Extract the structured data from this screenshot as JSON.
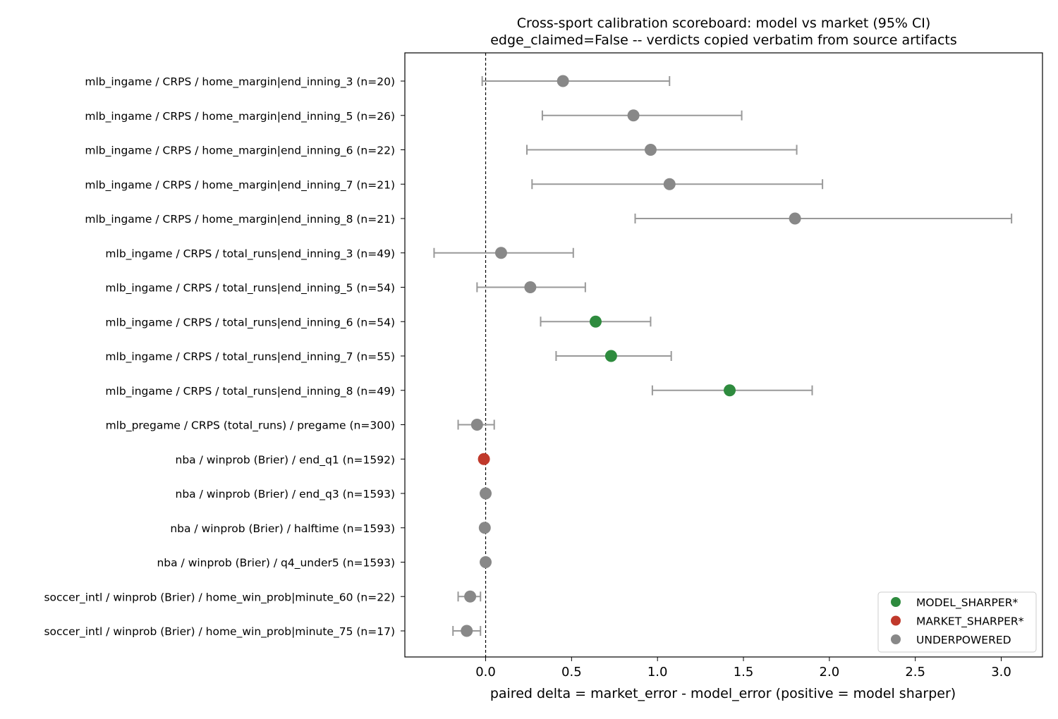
{
  "chart_data": {
    "type": "scatter",
    "title": "Cross-sport calibration scoreboard: model vs market (95% CI)",
    "subtitle": "edge_claimed=False -- verdicts copied verbatim from source artifacts",
    "xlabel": "paired delta = market_error - model_error  (positive = model sharper)",
    "ylabel": "",
    "xlim": [
      -0.47,
      3.24
    ],
    "xticks": [
      0.0,
      0.5,
      1.0,
      1.5,
      2.0,
      2.5,
      3.0
    ],
    "xtick_labels": [
      "0.0",
      "0.5",
      "1.0",
      "1.5",
      "2.0",
      "2.5",
      "3.0"
    ],
    "reference_line": {
      "x": 0,
      "style": "dashed"
    },
    "grid": false,
    "legend_position": "lower-right",
    "colors": {
      "MODEL_SHARPER*": "#2e8b3e",
      "MARKET_SHARPER*": "#c0392b",
      "UNDERPOWERED": "#888888",
      "errorbar": "#999999"
    },
    "legend": [
      {
        "label": "MODEL_SHARPER*",
        "color": "#2e8b3e"
      },
      {
        "label": "MARKET_SHARPER*",
        "color": "#c0392b"
      },
      {
        "label": "UNDERPOWERED",
        "color": "#888888"
      }
    ],
    "rows": [
      {
        "label": "mlb_ingame / CRPS / home_margin|end_inning_3 (n=20)",
        "value": 0.45,
        "lo": -0.02,
        "hi": 1.07,
        "verdict": "UNDERPOWERED"
      },
      {
        "label": "mlb_ingame / CRPS / home_margin|end_inning_5 (n=26)",
        "value": 0.86,
        "lo": 0.33,
        "hi": 1.49,
        "verdict": "UNDERPOWERED"
      },
      {
        "label": "mlb_ingame / CRPS / home_margin|end_inning_6 (n=22)",
        "value": 0.96,
        "lo": 0.24,
        "hi": 1.81,
        "verdict": "UNDERPOWERED"
      },
      {
        "label": "mlb_ingame / CRPS / home_margin|end_inning_7 (n=21)",
        "value": 1.07,
        "lo": 0.27,
        "hi": 1.96,
        "verdict": "UNDERPOWERED"
      },
      {
        "label": "mlb_ingame / CRPS / home_margin|end_inning_8 (n=21)",
        "value": 1.8,
        "lo": 0.87,
        "hi": 3.06,
        "verdict": "UNDERPOWERED"
      },
      {
        "label": "mlb_ingame / CRPS / total_runs|end_inning_3 (n=49)",
        "value": 0.09,
        "lo": -0.3,
        "hi": 0.51,
        "verdict": "UNDERPOWERED"
      },
      {
        "label": "mlb_ingame / CRPS / total_runs|end_inning_5 (n=54)",
        "value": 0.26,
        "lo": -0.05,
        "hi": 0.58,
        "verdict": "UNDERPOWERED"
      },
      {
        "label": "mlb_ingame / CRPS / total_runs|end_inning_6 (n=54)",
        "value": 0.64,
        "lo": 0.32,
        "hi": 0.96,
        "verdict": "MODEL_SHARPER*"
      },
      {
        "label": "mlb_ingame / CRPS / total_runs|end_inning_7 (n=55)",
        "value": 0.73,
        "lo": 0.41,
        "hi": 1.08,
        "verdict": "MODEL_SHARPER*"
      },
      {
        "label": "mlb_ingame / CRPS / total_runs|end_inning_8 (n=49)",
        "value": 1.42,
        "lo": 0.97,
        "hi": 1.9,
        "verdict": "MODEL_SHARPER*"
      },
      {
        "label": "mlb_pregame / CRPS (total_runs) / pregame (n=300)",
        "value": -0.05,
        "lo": -0.16,
        "hi": 0.05,
        "verdict": "UNDERPOWERED"
      },
      {
        "label": "nba / winprob (Brier) / end_q1 (n=1592)",
        "value": -0.01,
        "lo": -0.013,
        "hi": -0.005,
        "verdict": "MARKET_SHARPER*"
      },
      {
        "label": "nba / winprob (Brier) / end_q3 (n=1593)",
        "value": 0.0,
        "lo": -0.004,
        "hi": 0.004,
        "verdict": "UNDERPOWERED"
      },
      {
        "label": "nba / winprob (Brier) / halftime (n=1593)",
        "value": -0.005,
        "lo": -0.009,
        "hi": 0.0,
        "verdict": "UNDERPOWERED"
      },
      {
        "label": "nba / winprob (Brier) / q4_under5 (n=1593)",
        "value": 0.0,
        "lo": -0.003,
        "hi": 0.003,
        "verdict": "UNDERPOWERED"
      },
      {
        "label": "soccer_intl / winprob (Brier) / home_win_prob|minute_60 (n=22)",
        "value": -0.09,
        "lo": -0.16,
        "hi": -0.03,
        "verdict": "UNDERPOWERED"
      },
      {
        "label": "soccer_intl / winprob (Brier) / home_win_prob|minute_75 (n=17)",
        "value": -0.11,
        "lo": -0.19,
        "hi": -0.03,
        "verdict": "UNDERPOWERED"
      }
    ]
  }
}
